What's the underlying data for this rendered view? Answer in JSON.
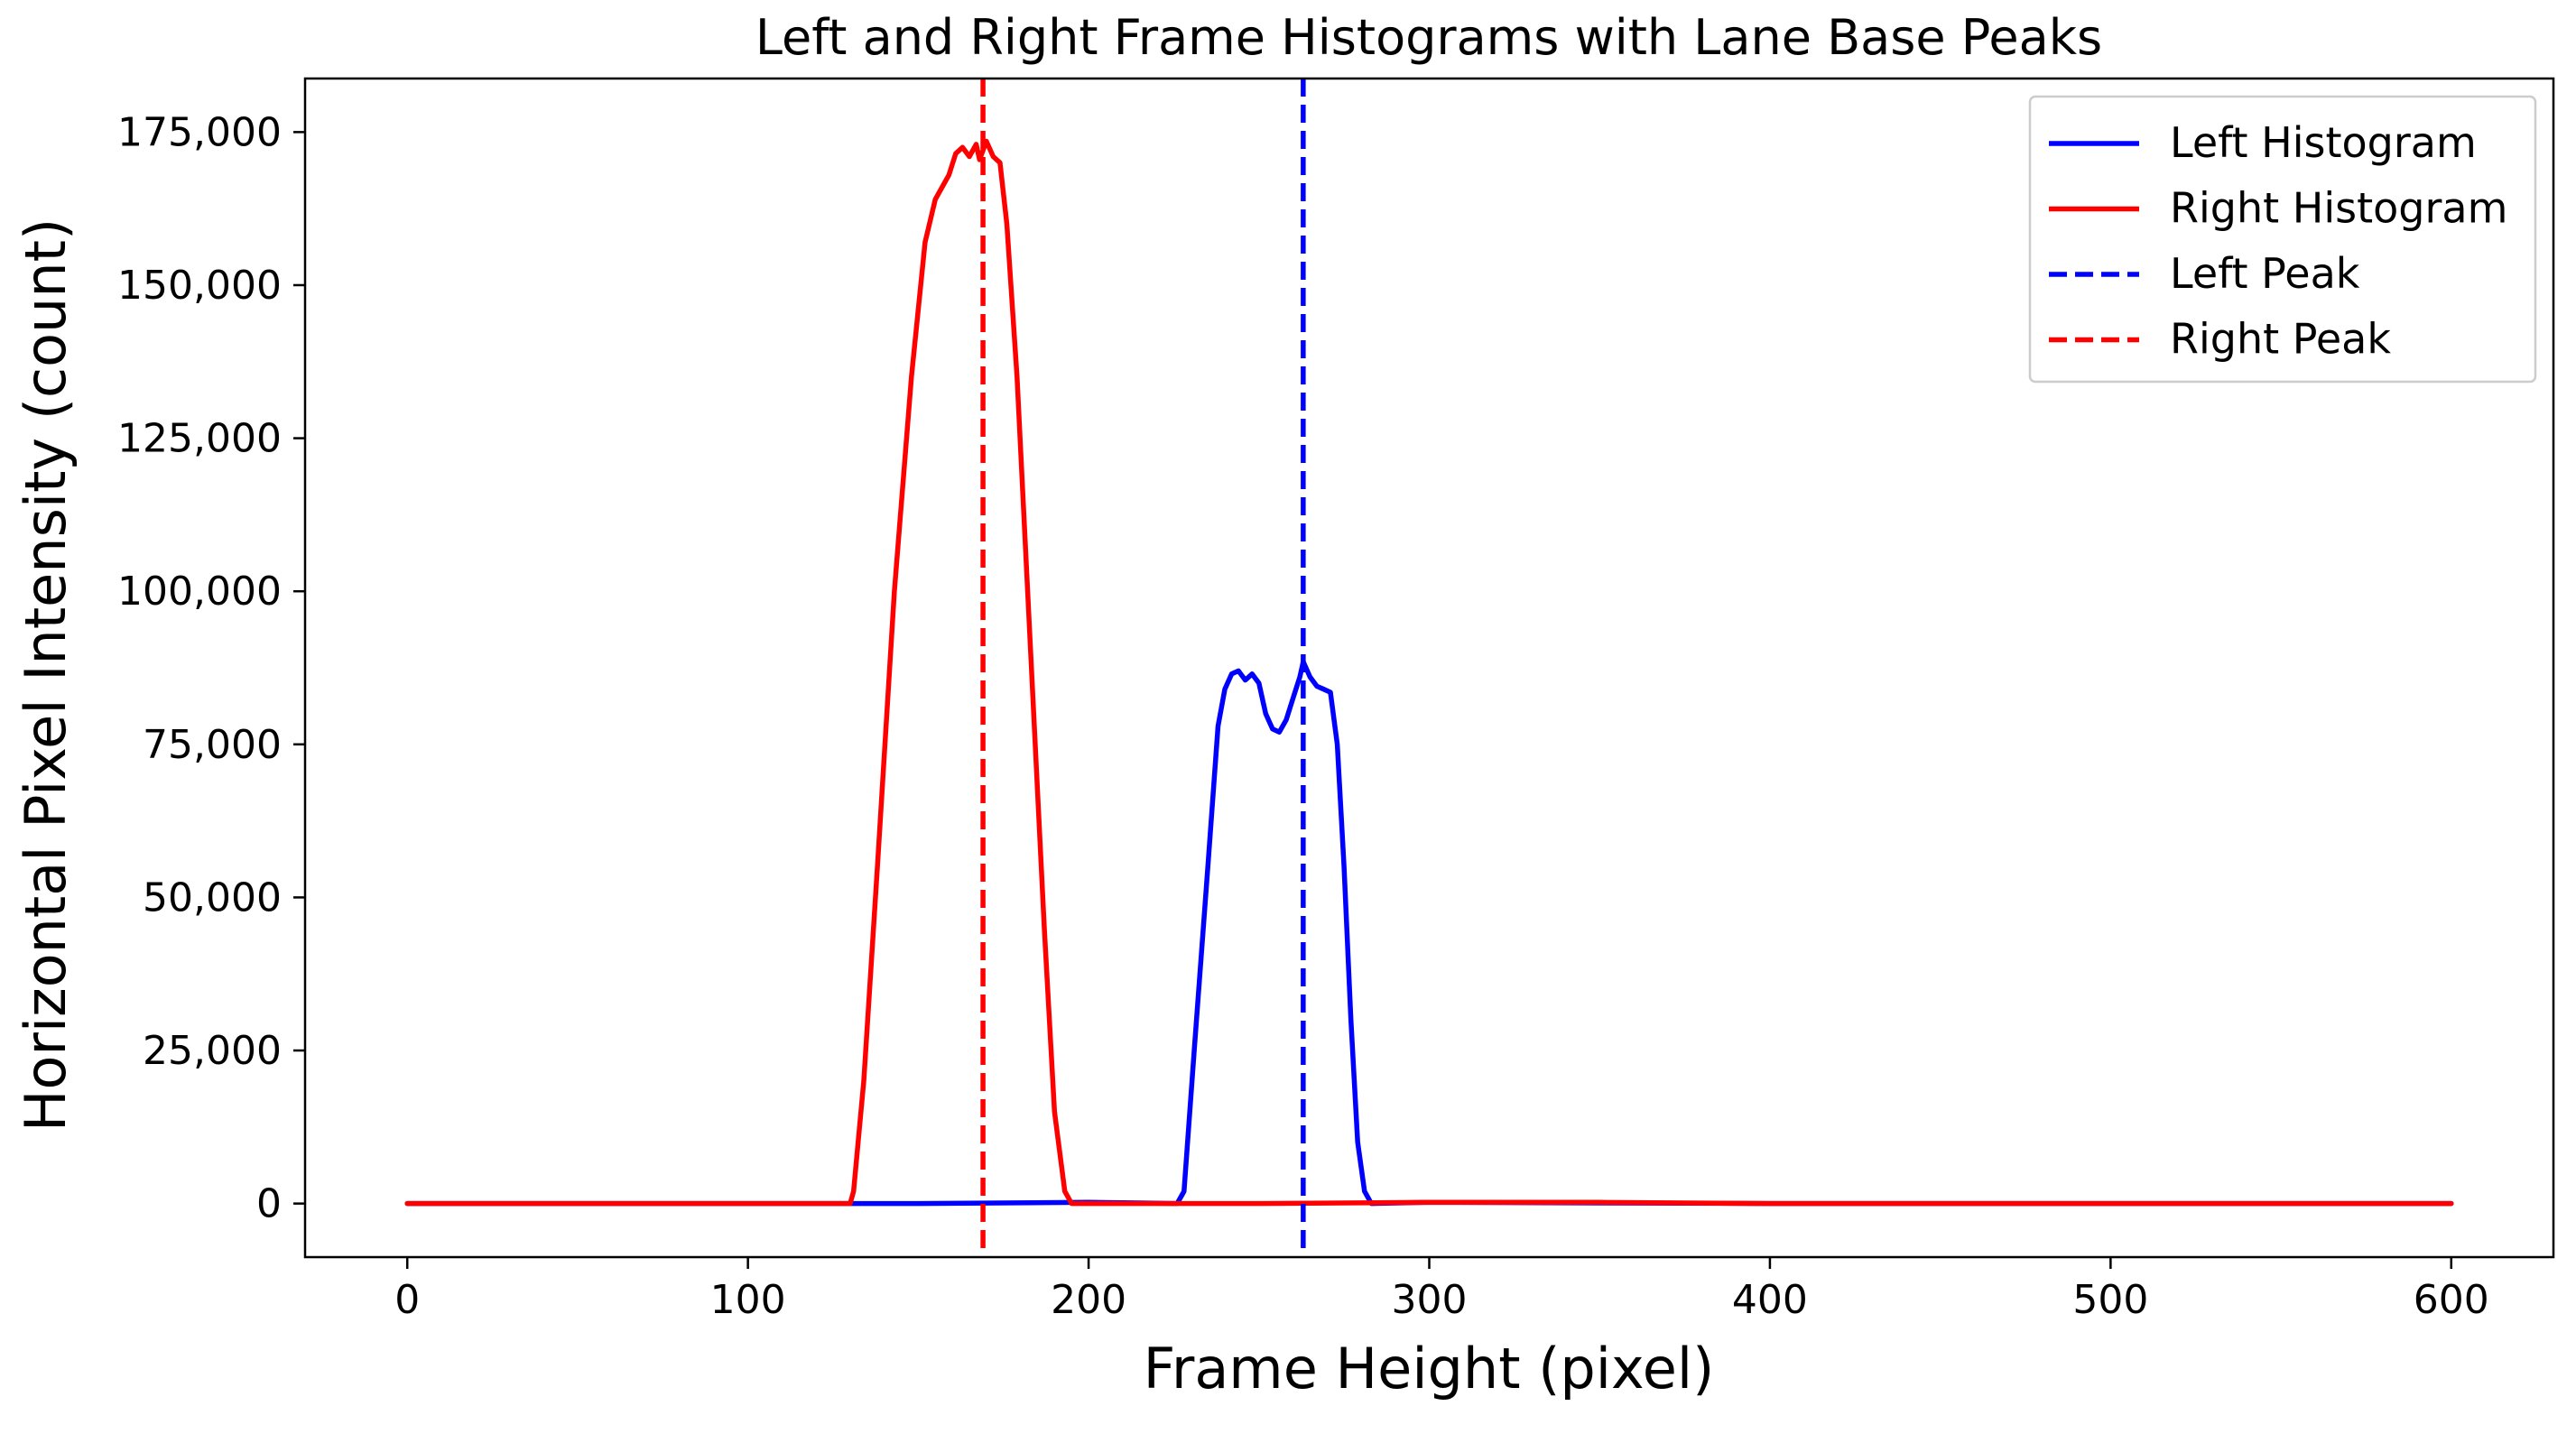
{
  "chart_data": {
    "type": "line",
    "title": "Left and Right Frame Histograms with Lane Base Peaks",
    "xlabel": "Frame Height (pixel)",
    "ylabel": "Horizontal Pixel Intensity (count)",
    "xlim": [
      -30,
      630
    ],
    "ylim": [
      -8750,
      183750
    ],
    "xticks": [
      0,
      100,
      200,
      300,
      400,
      500,
      600
    ],
    "xtick_labels": [
      "0",
      "100",
      "200",
      "300",
      "400",
      "500",
      "600"
    ],
    "yticks": [
      0,
      25000,
      50000,
      75000,
      100000,
      125000,
      150000,
      175000
    ],
    "ytick_labels": [
      "0",
      "25,000",
      "50,000",
      "75,000",
      "100,000",
      "125,000",
      "150,000",
      "175,000"
    ],
    "grid": false,
    "legend_position": "top-right",
    "series": [
      {
        "name": "Left Histogram",
        "style": "solid",
        "color": "#0000ff",
        "points": [
          [
            0,
            0
          ],
          [
            100,
            0
          ],
          [
            150,
            0
          ],
          [
            200,
            200
          ],
          [
            226,
            0
          ],
          [
            228,
            2000
          ],
          [
            231,
            25000
          ],
          [
            235,
            55000
          ],
          [
            238,
            78000
          ],
          [
            240,
            84000
          ],
          [
            242,
            86500
          ],
          [
            244,
            87000
          ],
          [
            246,
            85500
          ],
          [
            248,
            86500
          ],
          [
            250,
            85000
          ],
          [
            252,
            80000
          ],
          [
            254,
            77500
          ],
          [
            256,
            77000
          ],
          [
            258,
            79000
          ],
          [
            260,
            82500
          ],
          [
            262,
            86000
          ],
          [
            263,
            88500
          ],
          [
            265,
            86000
          ],
          [
            267,
            84500
          ],
          [
            269,
            84000
          ],
          [
            271,
            83500
          ],
          [
            273,
            75000
          ],
          [
            275,
            55000
          ],
          [
            277,
            30000
          ],
          [
            279,
            10000
          ],
          [
            281,
            2000
          ],
          [
            283,
            0
          ],
          [
            300,
            200
          ],
          [
            400,
            0
          ],
          [
            500,
            0
          ],
          [
            600,
            0
          ]
        ]
      },
      {
        "name": "Right Histogram",
        "style": "solid",
        "color": "#ff0000",
        "points": [
          [
            0,
            0
          ],
          [
            50,
            0
          ],
          [
            100,
            0
          ],
          [
            130,
            0
          ],
          [
            131,
            2000
          ],
          [
            134,
            20000
          ],
          [
            138,
            55000
          ],
          [
            143,
            100000
          ],
          [
            148,
            135000
          ],
          [
            152,
            157000
          ],
          [
            155,
            164000
          ],
          [
            157,
            166000
          ],
          [
            159,
            168000
          ],
          [
            161,
            171500
          ],
          [
            163,
            172500
          ],
          [
            165,
            171000
          ],
          [
            167,
            173000
          ],
          [
            168,
            170500
          ],
          [
            170,
            173500
          ],
          [
            172,
            171000
          ],
          [
            174,
            170000
          ],
          [
            176,
            160000
          ],
          [
            179,
            135000
          ],
          [
            183,
            90000
          ],
          [
            187,
            45000
          ],
          [
            190,
            15000
          ],
          [
            193,
            2000
          ],
          [
            195,
            0
          ],
          [
            250,
            0
          ],
          [
            300,
            200
          ],
          [
            350,
            200
          ],
          [
            400,
            0
          ],
          [
            500,
            0
          ],
          [
            600,
            0
          ]
        ]
      },
      {
        "name": "Left Peak",
        "style": "dashed",
        "color": "#0000ff",
        "x": 263
      },
      {
        "name": "Right Peak",
        "style": "dashed",
        "color": "#ff0000",
        "x": 169
      }
    ]
  }
}
